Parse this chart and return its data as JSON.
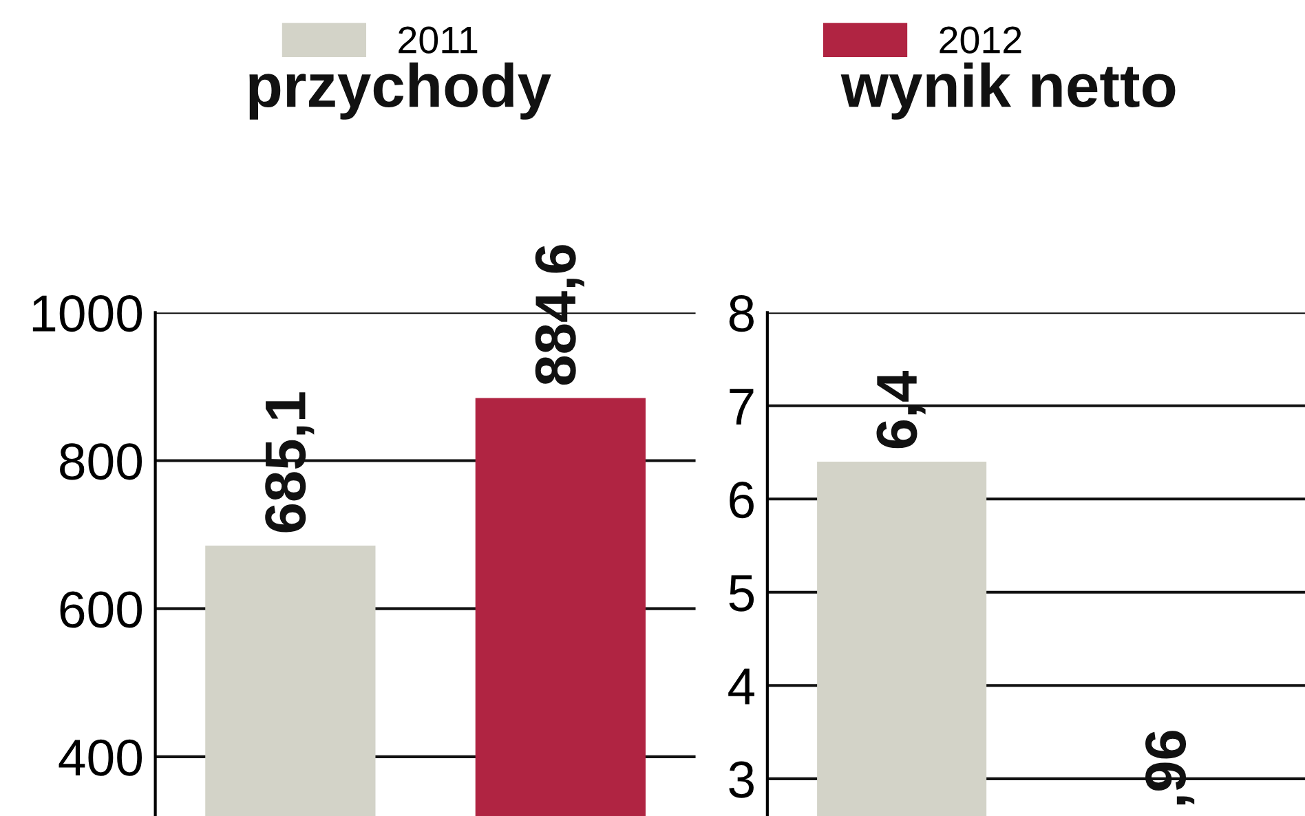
{
  "chart_data": [
    {
      "type": "bar",
      "title": "przychody",
      "categories": [
        null
      ],
      "series": [
        {
          "name": "2011",
          "color": "#d3d3c8",
          "values": [
            685.1
          ],
          "value_labels": [
            "685,1"
          ]
        },
        {
          "name": "2012",
          "color": "#b02442",
          "values": [
            884.6
          ],
          "value_labels": [
            "884,6"
          ]
        }
      ],
      "ylim": [
        320,
        1000
      ],
      "yticks": [
        400,
        600,
        800,
        1000
      ],
      "grid": "y",
      "legend": "top"
    },
    {
      "type": "bar",
      "title": "wynik netto",
      "categories": [
        null
      ],
      "series": [
        {
          "color": "#d3d3c8",
          "values": [
            6.4
          ],
          "value_labels": [
            "6,4"
          ]
        },
        {
          "color": "#b02442",
          "values": [
            null
          ]
        }
      ],
      "annotations": [
        ",96"
      ],
      "ylim": [
        2.6,
        8
      ],
      "yticks": [
        3,
        4,
        5,
        6,
        7,
        8
      ],
      "grid": "y"
    }
  ]
}
